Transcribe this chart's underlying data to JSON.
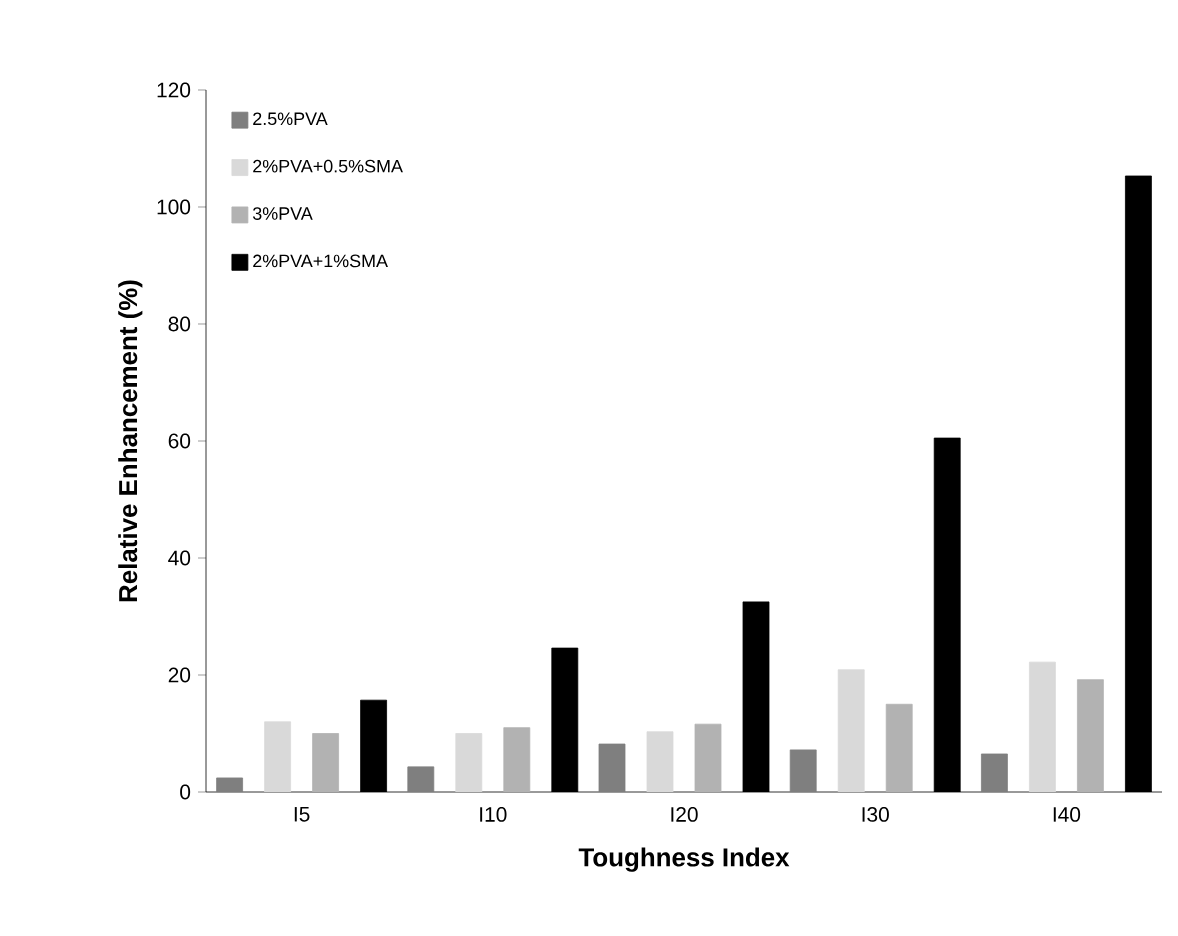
{
  "chart_data": {
    "type": "bar",
    "xlabel": "Toughness Index",
    "ylabel": "Relative Enhancement (%)",
    "categories": [
      "I5",
      "I10",
      "I20",
      "I30",
      "I40"
    ],
    "series": [
      {
        "name": "2.5%PVA",
        "color": "#7f7f7f",
        "values": [
          2.4,
          4.3,
          8.2,
          7.2,
          6.5
        ]
      },
      {
        "name": "2%PVA+0.5%SMA",
        "color": "#d9d9d9",
        "values": [
          12,
          10,
          10.3,
          20.9,
          22.2
        ]
      },
      {
        "name": "3%PVA",
        "color": "#b2b2b2",
        "values": [
          10,
          11,
          11.6,
          15,
          19.2
        ]
      },
      {
        "name": "2%PVA+1%SMA",
        "color": "#000000",
        "values": [
          15.7,
          24.6,
          32.5,
          60.5,
          105.3
        ]
      }
    ],
    "ylim": [
      0,
      120
    ],
    "yticks": [
      0,
      20,
      40,
      60,
      80,
      100,
      120
    ],
    "grid": false,
    "legend": "top left"
  }
}
